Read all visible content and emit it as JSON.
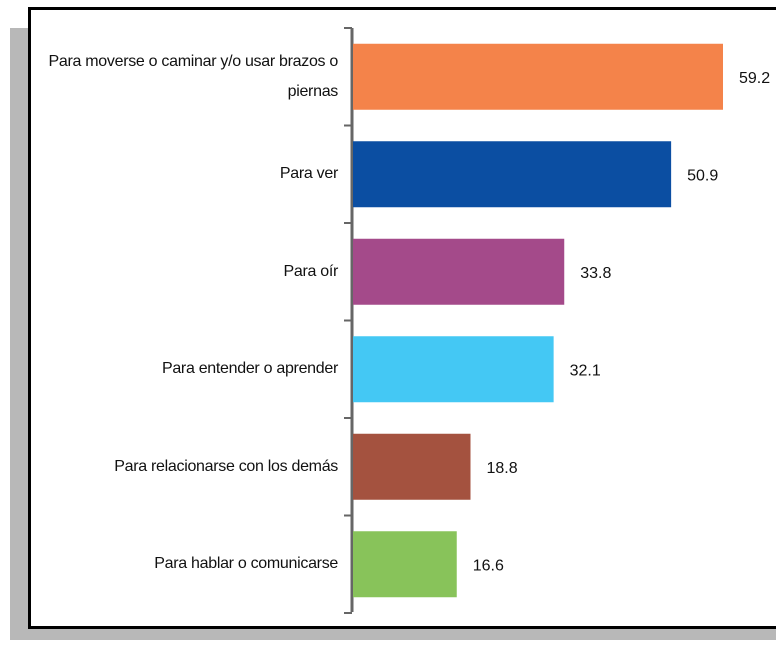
{
  "chart_data": {
    "type": "bar",
    "orientation": "horizontal",
    "categories": [
      "Para moverse o caminar y/o usar brazos o piernas",
      "Para ver",
      "Para oír",
      "Para entender o aprender",
      "Para relacionarse con los demás",
      "Para hablar o comunicarse"
    ],
    "values": [
      59.2,
      50.9,
      33.8,
      32.1,
      18.8,
      16.6
    ],
    "colors": [
      "#f4834a",
      "#0b4ea2",
      "#a44a8a",
      "#44c8f4",
      "#a4523f",
      "#88c35a"
    ]
  }
}
